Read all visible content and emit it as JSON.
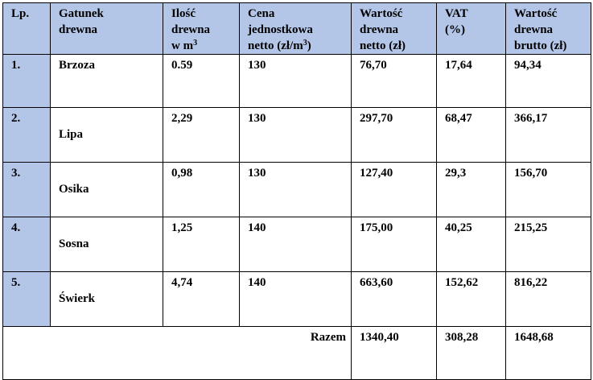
{
  "headers": {
    "lp": "Lp.",
    "gatunek": [
      "Gatunek",
      "drewna"
    ],
    "ilosc": [
      "Ilość",
      "drewna",
      "w m",
      "3"
    ],
    "cena": [
      "Cena",
      "jednostkowa",
      "netto (zł/m",
      "3",
      ")"
    ],
    "netto": [
      "Wartość",
      "drewna",
      "netto (zł)"
    ],
    "vat": [
      "VAT",
      "(%)"
    ],
    "brutto": [
      "Wartość",
      "drewna",
      "brutto (zł)"
    ]
  },
  "rows": [
    {
      "lp": "1.",
      "gatunek": "Brzoza",
      "ilosc": "0.59",
      "cena": "130",
      "netto": "76,70",
      "vat": "17,64",
      "brutto": "94,34"
    },
    {
      "lp": "2.",
      "gatunek": "Lipa",
      "ilosc": "2,29",
      "cena": "130",
      "netto": "297,70",
      "vat": "68,47",
      "brutto": "366,17"
    },
    {
      "lp": "3.",
      "gatunek": "Osika",
      "ilosc": "0,98",
      "cena": "130",
      "netto": "127,40",
      "vat": "29,3",
      "brutto": "156,70"
    },
    {
      "lp": "4.",
      "gatunek": "Sosna",
      "ilosc": "1,25",
      "cena": "140",
      "netto": "175,00",
      "vat": "40,25",
      "brutto": "215,25"
    },
    {
      "lp": "5.",
      "gatunek": "Świerk",
      "ilosc": "4,74",
      "cena": "140",
      "netto": "663,60",
      "vat": "152,62",
      "brutto": "816,22"
    }
  ],
  "total": {
    "label": "Razem",
    "netto": "1340,40",
    "vat": "308,28",
    "brutto": "1648,68"
  },
  "colors": {
    "header_fill": "#b4c6e7",
    "lp_fill": "#b4c6e7",
    "border": "#000000"
  }
}
